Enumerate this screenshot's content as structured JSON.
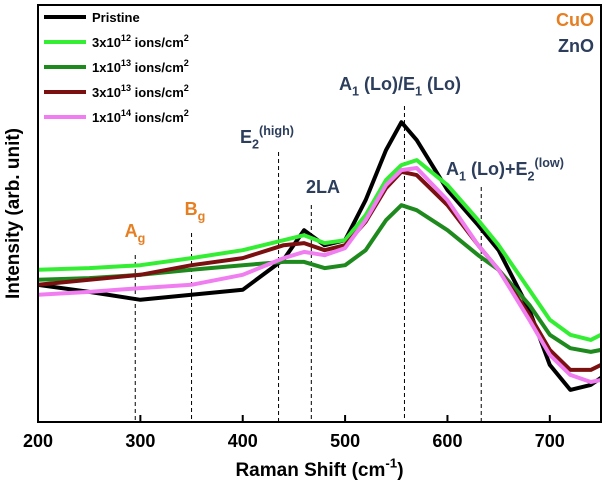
{
  "chart_data": {
    "type": "line",
    "xlabel": [
      {
        "t": "Raman Shift (cm"
      },
      {
        "sup": "-1"
      },
      {
        "t": ")"
      }
    ],
    "ylabel": "Intensity (arb. unit)",
    "corner_labels": [
      {
        "text": "CuO",
        "color": "#e67e22"
      },
      {
        "text": "ZnO",
        "color": "#2c3e5c"
      }
    ],
    "xlim": [
      200,
      750
    ],
    "ylim": [
      0,
      100
    ],
    "xticks": [
      200,
      300,
      400,
      500,
      600,
      700
    ],
    "x": [
      200,
      250,
      300,
      350,
      400,
      440,
      460,
      480,
      500,
      520,
      540,
      555,
      570,
      600,
      630,
      650,
      680,
      700,
      720,
      740,
      750
    ],
    "series": [
      {
        "name": [
          {
            "t": "Pristine"
          }
        ],
        "color": "#000000",
        "values": [
          32.9,
          31.2,
          29.3,
          30.5,
          31.7,
          39.0,
          46.0,
          42.4,
          43.6,
          53.2,
          65.2,
          71.9,
          67.6,
          55.6,
          47.2,
          41.2,
          26.9,
          13.7,
          7.7,
          8.9,
          10.6
        ]
      },
      {
        "name": [
          {
            "t": "3x10"
          },
          {
            "sup": "12"
          },
          {
            "t": " ions/cm"
          },
          {
            "sup": "2"
          }
        ],
        "color": "#33ee33",
        "values": [
          36.5,
          36.9,
          37.6,
          39.3,
          41.2,
          43.6,
          44.8,
          42.9,
          43.6,
          49.6,
          58.0,
          61.6,
          62.8,
          56.8,
          48.4,
          42.4,
          31.7,
          24.5,
          20.9,
          19.7,
          20.9
        ]
      },
      {
        "name": [
          {
            "t": "1x10"
          },
          {
            "sup": "13"
          },
          {
            "t": " ions/cm"
          },
          {
            "sup": "2"
          }
        ],
        "color": "#1e8a1e",
        "values": [
          34.1,
          34.5,
          35.3,
          36.5,
          37.6,
          38.4,
          38.4,
          36.9,
          37.6,
          41.2,
          48.4,
          52.0,
          50.8,
          46.0,
          40.0,
          36.5,
          28.1,
          20.9,
          17.7,
          16.8,
          17.3
        ]
      },
      {
        "name": [
          {
            "t": "3x10"
          },
          {
            "sup": "13"
          },
          {
            "t": " ions/cm"
          },
          {
            "sup": "2"
          }
        ],
        "color": "#7a1010",
        "values": [
          32.9,
          34.1,
          35.3,
          37.6,
          39.3,
          42.4,
          42.9,
          41.2,
          42.4,
          48.0,
          56.1,
          60.0,
          59.2,
          52.0,
          42.4,
          36.5,
          25.7,
          17.3,
          12.5,
          12.5,
          13.7
        ]
      },
      {
        "name": [
          {
            "t": "1x10"
          },
          {
            "sup": "14"
          },
          {
            "t": " ions/cm"
          },
          {
            "sup": "2"
          }
        ],
        "color": "#f07ef0",
        "values": [
          30.5,
          31.2,
          32.1,
          32.9,
          35.3,
          39.3,
          40.8,
          40.0,
          41.7,
          48.4,
          56.8,
          60.4,
          60.9,
          53.2,
          42.4,
          36.5,
          24.5,
          16.1,
          11.3,
          9.6,
          10.1
        ]
      }
    ],
    "annotations": [
      {
        "x": 295,
        "color": "#e67e22",
        "label": [
          {
            "t": "A"
          },
          {
            "sub": "g"
          }
        ]
      },
      {
        "x": 350,
        "color": "#e67e22",
        "label": [
          {
            "t": "B"
          },
          {
            "sub": "g"
          }
        ]
      },
      {
        "x": 435,
        "color": "#2c3e5c",
        "label": [
          {
            "t": "E"
          },
          {
            "sub": "2"
          },
          {
            "sup": "(high)"
          }
        ]
      },
      {
        "x": 467,
        "color": "#2c3e5c",
        "label": [
          {
            "t": "2LA"
          }
        ]
      },
      {
        "x": 558,
        "color": "#2c3e5c",
        "label": [
          {
            "t": "A"
          },
          {
            "sub": "1"
          },
          {
            "t": " (Lo)/E"
          },
          {
            "sub": "1"
          },
          {
            "t": " (Lo)"
          }
        ]
      },
      {
        "x": 633,
        "color": "#2c3e5c",
        "label": [
          {
            "t": "A"
          },
          {
            "sub": "1"
          },
          {
            "t": " (Lo)+E"
          },
          {
            "sub": "2"
          },
          {
            "sup": "(low)"
          }
        ]
      }
    ]
  }
}
